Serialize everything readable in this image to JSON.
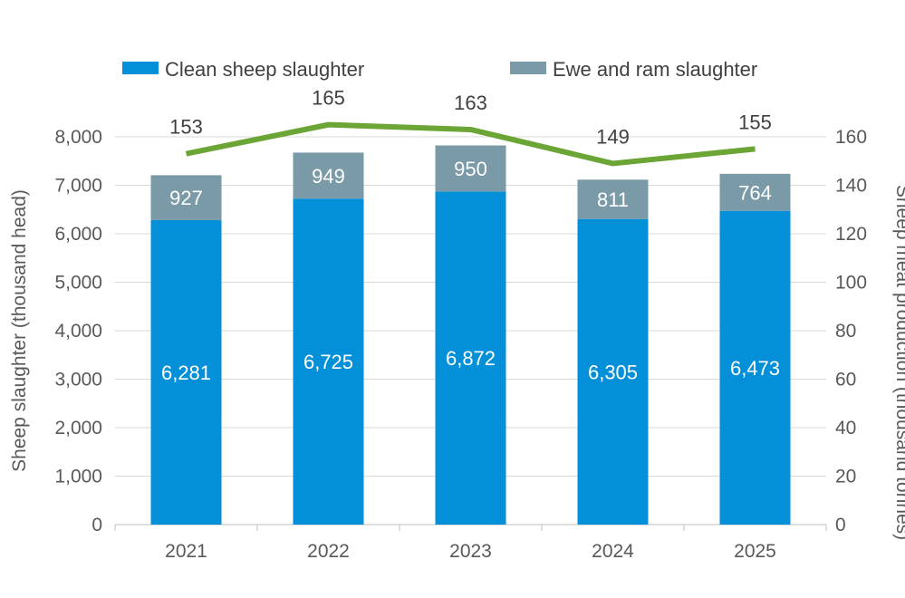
{
  "chart_data": {
    "type": "bar",
    "categories": [
      "2021",
      "2022",
      "2023",
      "2024",
      "2025"
    ],
    "series": [
      {
        "name": "Clean sheep slaughter",
        "kind": "stacked-bar",
        "axis": "left",
        "color": "#0490d8",
        "values": [
          6281,
          6725,
          6872,
          6305,
          6473
        ],
        "labels": [
          "6,281",
          "6,725",
          "6,872",
          "6,305",
          "6,473"
        ]
      },
      {
        "name": "Ewe and ram slaughter",
        "kind": "stacked-bar",
        "axis": "left",
        "color": "#7b9aa7",
        "values": [
          927,
          949,
          950,
          811,
          764
        ],
        "labels": [
          "927",
          "949",
          "950",
          "811",
          "764"
        ]
      },
      {
        "name": "Sheep meat production",
        "kind": "line",
        "axis": "right",
        "color": "#6aa535",
        "values": [
          153,
          165,
          163,
          149,
          155
        ],
        "labels": [
          "153",
          "165",
          "163",
          "149",
          "155"
        ]
      }
    ],
    "ylabel": "Sheep slaughter (thousand head)",
    "y2label": "Sheep meat production (thousand tonnes)",
    "ylim": [
      0,
      8000
    ],
    "y2lim": [
      0,
      160
    ],
    "yticks": [
      "0",
      "1,000",
      "2,000",
      "3,000",
      "4,000",
      "5,000",
      "6,000",
      "7,000",
      "8,000"
    ],
    "y2ticks": [
      "0",
      "20",
      "40",
      "60",
      "80",
      "100",
      "120",
      "140",
      "160"
    ],
    "legend": "top",
    "grid": true
  }
}
